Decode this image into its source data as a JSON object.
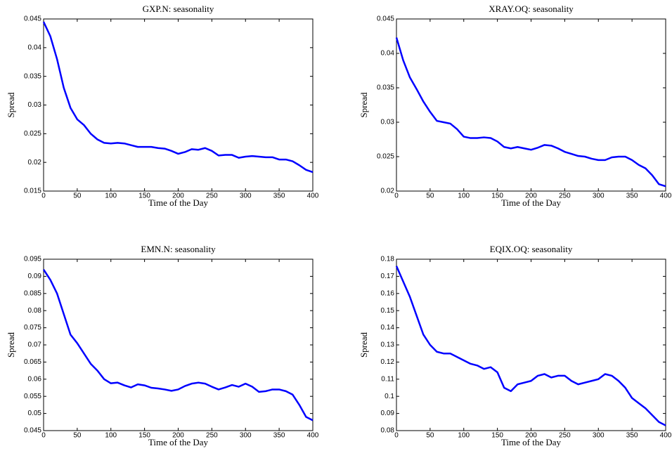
{
  "chart_data": [
    {
      "type": "line",
      "title": "GXP.N: seasonality",
      "xlabel": "Time of the Day",
      "ylabel": "Spread",
      "color": "#0000ff",
      "x": [
        0,
        10,
        20,
        30,
        40,
        50,
        60,
        70,
        80,
        90,
        100,
        110,
        120,
        130,
        140,
        150,
        160,
        170,
        180,
        190,
        200,
        210,
        220,
        230,
        240,
        250,
        260,
        270,
        280,
        290,
        300,
        310,
        320,
        330,
        340,
        350,
        360,
        370,
        380,
        390,
        400
      ],
      "values": [
        0.0445,
        0.042,
        0.038,
        0.033,
        0.0295,
        0.0275,
        0.0265,
        0.025,
        0.024,
        0.0234,
        0.0233,
        0.0234,
        0.0233,
        0.023,
        0.0227,
        0.0227,
        0.0227,
        0.0225,
        0.0224,
        0.022,
        0.0215,
        0.0218,
        0.0223,
        0.0222,
        0.0225,
        0.022,
        0.0212,
        0.0213,
        0.0213,
        0.0208,
        0.021,
        0.0211,
        0.021,
        0.0209,
        0.0209,
        0.0205,
        0.0205,
        0.0202,
        0.0195,
        0.0187,
        0.0183
      ],
      "xlim": [
        0,
        400
      ],
      "xticks": [
        0,
        50,
        100,
        150,
        200,
        250,
        300,
        350,
        400
      ],
      "ylim": [
        0.015,
        0.045
      ],
      "yticks": [
        0.015,
        0.02,
        0.025,
        0.03,
        0.035,
        0.04,
        0.045
      ]
    },
    {
      "type": "line",
      "title": "XRAY.OQ: seasonality",
      "xlabel": "Time of the Day",
      "ylabel": "Spread",
      "color": "#0000ff",
      "x": [
        0,
        10,
        20,
        30,
        40,
        50,
        60,
        70,
        80,
        90,
        100,
        110,
        120,
        130,
        140,
        150,
        160,
        170,
        180,
        190,
        200,
        210,
        220,
        230,
        240,
        250,
        260,
        270,
        280,
        290,
        300,
        310,
        320,
        330,
        340,
        350,
        360,
        370,
        380,
        390,
        400
      ],
      "values": [
        0.0423,
        0.039,
        0.0365,
        0.0348,
        0.033,
        0.0315,
        0.0302,
        0.03,
        0.0298,
        0.029,
        0.0279,
        0.0277,
        0.0277,
        0.0278,
        0.0277,
        0.0272,
        0.0264,
        0.0262,
        0.0264,
        0.0262,
        0.026,
        0.0263,
        0.0267,
        0.0266,
        0.0262,
        0.0257,
        0.0254,
        0.0251,
        0.025,
        0.0247,
        0.0245,
        0.0245,
        0.0249,
        0.025,
        0.025,
        0.0245,
        0.0238,
        0.0233,
        0.0223,
        0.021,
        0.0207
      ],
      "xlim": [
        0,
        400
      ],
      "xticks": [
        0,
        50,
        100,
        150,
        200,
        250,
        300,
        350,
        400
      ],
      "ylim": [
        0.02,
        0.045
      ],
      "yticks": [
        0.02,
        0.025,
        0.03,
        0.035,
        0.04,
        0.045
      ]
    },
    {
      "type": "line",
      "title": "EMN.N: seasonality",
      "xlabel": "Time of the Day",
      "ylabel": "Spread",
      "color": "#0000ff",
      "x": [
        0,
        10,
        20,
        30,
        40,
        50,
        60,
        70,
        80,
        90,
        100,
        110,
        120,
        130,
        140,
        150,
        160,
        170,
        180,
        190,
        200,
        210,
        220,
        230,
        240,
        250,
        260,
        270,
        280,
        290,
        300,
        310,
        320,
        330,
        340,
        350,
        360,
        370,
        380,
        390,
        400
      ],
      "values": [
        0.092,
        0.089,
        0.085,
        0.079,
        0.073,
        0.0705,
        0.0675,
        0.0645,
        0.0625,
        0.06,
        0.0588,
        0.059,
        0.0582,
        0.0576,
        0.0585,
        0.0582,
        0.0575,
        0.0573,
        0.057,
        0.0566,
        0.057,
        0.058,
        0.0587,
        0.059,
        0.0587,
        0.0578,
        0.057,
        0.0576,
        0.0583,
        0.0578,
        0.0587,
        0.0578,
        0.0563,
        0.0565,
        0.057,
        0.057,
        0.0565,
        0.0555,
        0.0525,
        0.049,
        0.048
      ],
      "xlim": [
        0,
        400
      ],
      "xticks": [
        0,
        50,
        100,
        150,
        200,
        250,
        300,
        350,
        400
      ],
      "ylim": [
        0.045,
        0.095
      ],
      "yticks": [
        0.045,
        0.05,
        0.055,
        0.06,
        0.065,
        0.07,
        0.075,
        0.08,
        0.085,
        0.09,
        0.095
      ]
    },
    {
      "type": "line",
      "title": "EQIX.OQ: seasonality",
      "xlabel": "Time of the Day",
      "ylabel": "Spread",
      "color": "#0000ff",
      "x": [
        0,
        10,
        20,
        30,
        40,
        50,
        60,
        70,
        80,
        90,
        100,
        110,
        120,
        130,
        140,
        150,
        160,
        170,
        180,
        190,
        200,
        210,
        220,
        230,
        240,
        250,
        260,
        270,
        280,
        290,
        300,
        310,
        320,
        330,
        340,
        350,
        360,
        370,
        380,
        390,
        400
      ],
      "values": [
        0.176,
        0.167,
        0.158,
        0.147,
        0.136,
        0.13,
        0.126,
        0.125,
        0.125,
        0.123,
        0.121,
        0.119,
        0.118,
        0.116,
        0.117,
        0.114,
        0.105,
        0.103,
        0.107,
        0.108,
        0.109,
        0.112,
        0.113,
        0.111,
        0.112,
        0.112,
        0.109,
        0.107,
        0.108,
        0.109,
        0.11,
        0.113,
        0.112,
        0.109,
        0.105,
        0.099,
        0.096,
        0.093,
        0.089,
        0.085,
        0.083
      ],
      "xlim": [
        0,
        400
      ],
      "xticks": [
        0,
        50,
        100,
        150,
        200,
        250,
        300,
        350,
        400
      ],
      "ylim": [
        0.08,
        0.18
      ],
      "yticks": [
        0.08,
        0.09,
        0.1,
        0.11,
        0.12,
        0.13,
        0.14,
        0.15,
        0.16,
        0.17,
        0.18
      ]
    }
  ]
}
